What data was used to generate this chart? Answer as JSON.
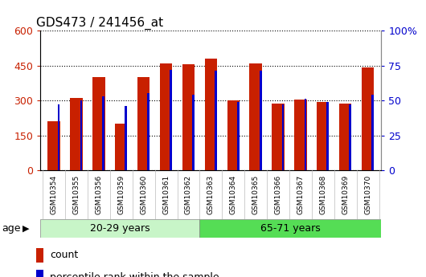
{
  "title": "GDS473 / 241456_at",
  "samples": [
    "GSM10354",
    "GSM10355",
    "GSM10356",
    "GSM10359",
    "GSM10360",
    "GSM10361",
    "GSM10362",
    "GSM10363",
    "GSM10364",
    "GSM10365",
    "GSM10366",
    "GSM10367",
    "GSM10368",
    "GSM10369",
    "GSM10370"
  ],
  "count_values": [
    210,
    310,
    400,
    200,
    400,
    460,
    455,
    480,
    300,
    460,
    285,
    305,
    295,
    288,
    440
  ],
  "percentile_values": [
    47,
    50,
    53,
    46,
    55,
    72,
    54,
    71,
    49,
    71,
    47,
    51,
    49,
    47,
    54
  ],
  "group1_label": "20-29 years",
  "group2_label": "65-71 years",
  "group1_count": 7,
  "group2_count": 8,
  "ylim_left": [
    0,
    600
  ],
  "ylim_right": [
    0,
    100
  ],
  "yticks_left": [
    0,
    150,
    300,
    450,
    600
  ],
  "ytick_labels_left": [
    "0",
    "150",
    "300",
    "450",
    "600"
  ],
  "yticks_right": [
    0,
    25,
    50,
    75,
    100
  ],
  "ytick_labels_right": [
    "0",
    "25",
    "50",
    "75",
    "100%"
  ],
  "bar_color": "#c82000",
  "percentile_color": "#0000cc",
  "group1_bg": "#c8f5c8",
  "group2_bg": "#55dd55",
  "tick_bg": "#cccccc",
  "legend_count": "count",
  "legend_percentile": "percentile rank within the sample",
  "age_label": "age"
}
